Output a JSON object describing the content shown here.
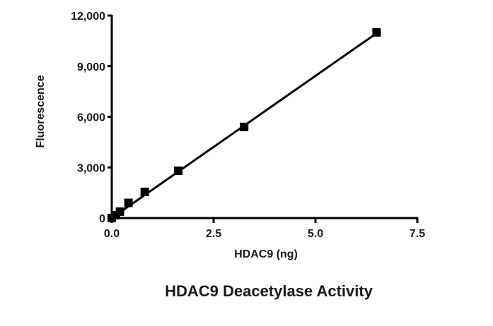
{
  "chart_data": {
    "type": "scatter",
    "title": "HDAC9 Deacetylase Activity",
    "xlabel": "HDAC9 (ng)",
    "ylabel": "Fluorescence",
    "xlim": [
      0,
      7.5
    ],
    "ylim": [
      0,
      12000
    ],
    "x_ticks": [
      "0.0",
      "2.5",
      "5.0",
      "7.5"
    ],
    "y_ticks": [
      "0",
      "3,000",
      "6,000",
      "9,000",
      "12,000"
    ],
    "grid": false,
    "legend": "none",
    "series": [
      {
        "points": [
          {
            "x": 0.0,
            "y": 0
          },
          {
            "x": 0.1,
            "y": 170
          },
          {
            "x": 0.2,
            "y": 380
          },
          {
            "x": 0.41,
            "y": 900
          },
          {
            "x": 0.81,
            "y": 1550
          },
          {
            "x": 1.63,
            "y": 2800
          },
          {
            "x": 3.25,
            "y": 5400
          },
          {
            "x": 6.5,
            "y": 11000
          }
        ],
        "fit_line": {
          "x_start": 0.0,
          "y_start": 0,
          "x_end": 6.5,
          "y_end": 10950
        },
        "marker": "square",
        "color": "#000000"
      }
    ]
  }
}
